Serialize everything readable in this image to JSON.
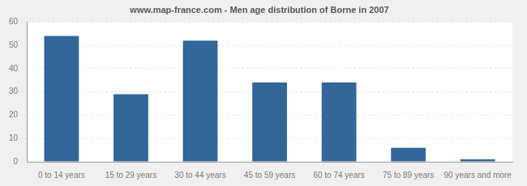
{
  "chart_data": {
    "type": "bar",
    "title": "www.map-france.com - Men age distribution of Borne in 2007",
    "categories": [
      "0 to 14 years",
      "15 to 29 years",
      "30 to 44 years",
      "45 to 59 years",
      "60 to 74 years",
      "75 to 89 years",
      "90 years and more"
    ],
    "values": [
      54,
      29,
      52,
      34,
      34,
      6,
      1
    ],
    "color": "#336699",
    "ylim": [
      0,
      60
    ],
    "yticks": [
      0,
      10,
      20,
      30,
      40,
      50,
      60
    ],
    "grid": true
  }
}
